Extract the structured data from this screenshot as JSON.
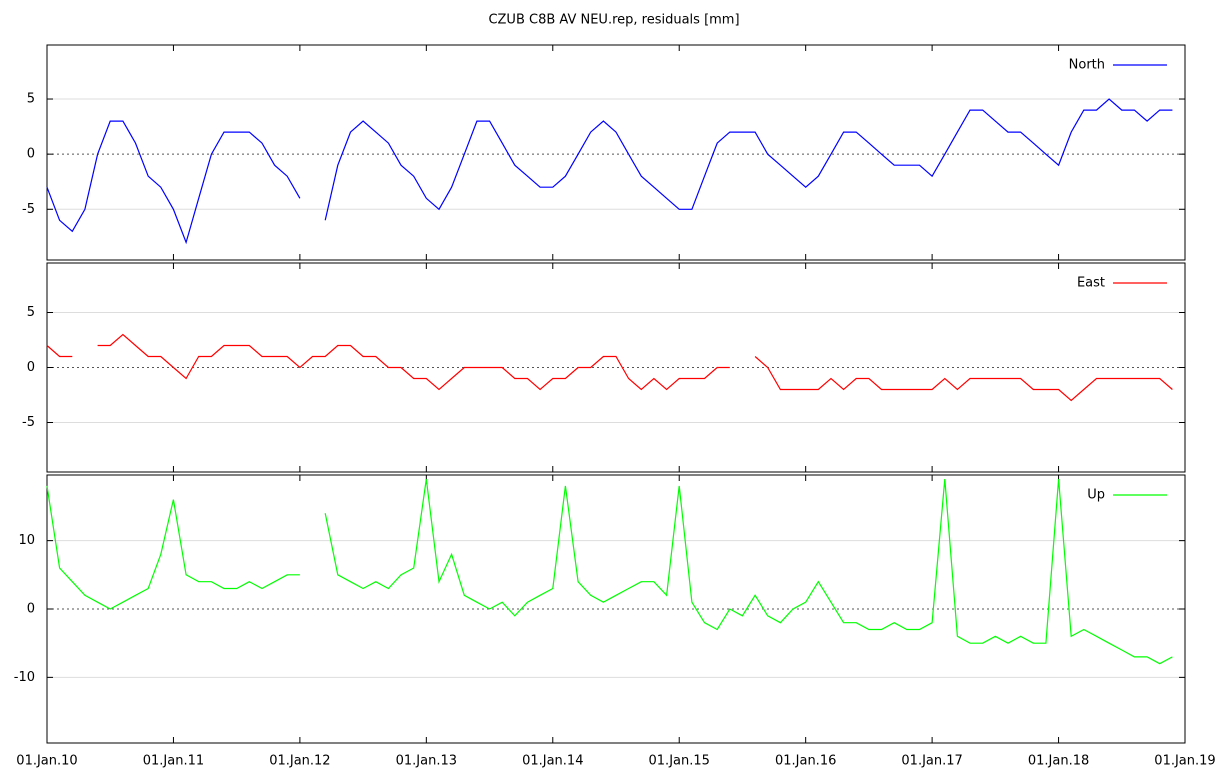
{
  "title": "CZUB C8B AV NEU.rep, residuals [mm]",
  "chart_data": [
    {
      "type": "line",
      "xlim": [
        2010,
        2019
      ],
      "ylim": [
        -9.6,
        9.9
      ],
      "yticks": [
        -5,
        0,
        5
      ],
      "grid": true,
      "legend": "top-right",
      "x": [
        2010.0,
        2010.1,
        2010.2,
        2010.3,
        2010.4,
        2010.5,
        2010.6,
        2010.7,
        2010.8,
        2010.9,
        2011.0,
        2011.1,
        2011.2,
        2011.3,
        2011.4,
        2011.5,
        2011.6,
        2011.7,
        2011.8,
        2011.9,
        2012.0,
        2012.1,
        2012.2,
        2012.3,
        2012.4,
        2012.5,
        2012.6,
        2012.7,
        2012.8,
        2012.9,
        2013.0,
        2013.1,
        2013.2,
        2013.3,
        2013.4,
        2013.5,
        2013.6,
        2013.7,
        2013.8,
        2013.9,
        2014.0,
        2014.1,
        2014.2,
        2014.3,
        2014.4,
        2014.5,
        2014.6,
        2014.7,
        2014.8,
        2014.9,
        2015.0,
        2015.1,
        2015.2,
        2015.3,
        2015.4,
        2015.5,
        2015.6,
        2015.7,
        2015.8,
        2015.9,
        2016.0,
        2016.1,
        2016.2,
        2016.3,
        2016.4,
        2016.5,
        2016.6,
        2016.7,
        2016.8,
        2016.9,
        2017.0,
        2017.1,
        2017.2,
        2017.3,
        2017.4,
        2017.5,
        2017.6,
        2017.7,
        2017.8,
        2017.9,
        2018.0,
        2018.1,
        2018.2,
        2018.3,
        2018.4,
        2018.5,
        2018.6,
        2018.7,
        2018.8,
        2018.9
      ],
      "series": [
        {
          "name": "North",
          "color": "#0000ff",
          "values": [
            -3,
            -6,
            -7,
            -5,
            0,
            3,
            3,
            1,
            -2,
            -3,
            -5,
            -8,
            -4,
            0,
            2,
            2,
            2,
            1,
            -1,
            -2,
            -4,
            null,
            -6,
            -1,
            2,
            3,
            2,
            1,
            -1,
            -2,
            -4,
            -5,
            -3,
            0,
            3,
            3,
            1,
            -1,
            -2,
            -3,
            -3,
            -2,
            0,
            2,
            3,
            2,
            0,
            -2,
            -3,
            -4,
            -5,
            -5,
            -2,
            1,
            2,
            2,
            2,
            0,
            -1,
            -2,
            -3,
            -2,
            0,
            2,
            2,
            1,
            0,
            -1,
            -1,
            -1,
            -2,
            0,
            2,
            4,
            4,
            3,
            2,
            2,
            1,
            0,
            -1,
            2,
            4,
            4,
            5,
            4,
            4,
            3,
            4,
            4
          ]
        }
      ]
    },
    {
      "type": "line",
      "xlim": [
        2010,
        2019
      ],
      "ylim": [
        -9.5,
        9.5
      ],
      "yticks": [
        -5,
        0,
        5
      ],
      "grid": true,
      "legend": "top-right",
      "x": [
        2010.0,
        2010.1,
        2010.2,
        2010.3,
        2010.4,
        2010.5,
        2010.6,
        2010.7,
        2010.8,
        2010.9,
        2011.0,
        2011.1,
        2011.2,
        2011.3,
        2011.4,
        2011.5,
        2011.6,
        2011.7,
        2011.8,
        2011.9,
        2012.0,
        2012.1,
        2012.2,
        2012.3,
        2012.4,
        2012.5,
        2012.6,
        2012.7,
        2012.8,
        2012.9,
        2013.0,
        2013.1,
        2013.2,
        2013.3,
        2013.4,
        2013.5,
        2013.6,
        2013.7,
        2013.8,
        2013.9,
        2014.0,
        2014.1,
        2014.2,
        2014.3,
        2014.4,
        2014.5,
        2014.6,
        2014.7,
        2014.8,
        2014.9,
        2015.0,
        2015.1,
        2015.2,
        2015.3,
        2015.4,
        2015.5,
        2015.6,
        2015.7,
        2015.8,
        2015.9,
        2016.0,
        2016.1,
        2016.2,
        2016.3,
        2016.4,
        2016.5,
        2016.6,
        2016.7,
        2016.8,
        2016.9,
        2017.0,
        2017.1,
        2017.2,
        2017.3,
        2017.4,
        2017.5,
        2017.6,
        2017.7,
        2017.8,
        2017.9,
        2018.0,
        2018.1,
        2018.2,
        2018.3,
        2018.4,
        2018.5,
        2018.6,
        2018.7,
        2018.8,
        2018.9
      ],
      "series": [
        {
          "name": "East",
          "color": "#ff0000",
          "values": [
            2,
            1,
            1,
            null,
            2,
            2,
            3,
            2,
            1,
            1,
            0,
            -1,
            1,
            1,
            2,
            2,
            2,
            1,
            1,
            1,
            0,
            1,
            1,
            2,
            2,
            1,
            1,
            0,
            0,
            -1,
            -1,
            -2,
            -1,
            0,
            0,
            0,
            0,
            -1,
            -1,
            -2,
            -1,
            -1,
            0,
            0,
            1,
            1,
            -1,
            -2,
            -1,
            -2,
            -1,
            -1,
            -1,
            0,
            0,
            null,
            1,
            0,
            -2,
            -2,
            -2,
            -2,
            -1,
            -2,
            -1,
            -1,
            -2,
            -2,
            -2,
            -2,
            -2,
            -1,
            -2,
            -1,
            -1,
            -1,
            -1,
            -1,
            -2,
            -2,
            -2,
            -3,
            -2,
            -1,
            -1,
            -1,
            -1,
            -1,
            -1,
            -2
          ]
        }
      ]
    },
    {
      "type": "line",
      "xlim": [
        2010,
        2019
      ],
      "ylim": [
        -19.6,
        19.6
      ],
      "yticks": [
        -10,
        0,
        10
      ],
      "grid": true,
      "legend": "top-right",
      "xticks": [
        {
          "value": 2010,
          "label": "01.Jan.10"
        },
        {
          "value": 2011,
          "label": "01.Jan.11"
        },
        {
          "value": 2012,
          "label": "01.Jan.12"
        },
        {
          "value": 2013,
          "label": "01.Jan.13"
        },
        {
          "value": 2014,
          "label": "01.Jan.14"
        },
        {
          "value": 2015,
          "label": "01.Jan.15"
        },
        {
          "value": 2016,
          "label": "01.Jan.16"
        },
        {
          "value": 2017,
          "label": "01.Jan.17"
        },
        {
          "value": 2018,
          "label": "01.Jan.18"
        },
        {
          "value": 2019,
          "label": "01.Jan.19"
        }
      ],
      "x": [
        2010.0,
        2010.1,
        2010.2,
        2010.3,
        2010.4,
        2010.5,
        2010.6,
        2010.7,
        2010.8,
        2010.9,
        2011.0,
        2011.1,
        2011.2,
        2011.3,
        2011.4,
        2011.5,
        2011.6,
        2011.7,
        2011.8,
        2011.9,
        2012.0,
        2012.1,
        2012.2,
        2012.3,
        2012.4,
        2012.5,
        2012.6,
        2012.7,
        2012.8,
        2012.9,
        2013.0,
        2013.1,
        2013.2,
        2013.3,
        2013.4,
        2013.5,
        2013.6,
        2013.7,
        2013.8,
        2013.9,
        2014.0,
        2014.1,
        2014.2,
        2014.3,
        2014.4,
        2014.5,
        2014.6,
        2014.7,
        2014.8,
        2014.9,
        2015.0,
        2015.1,
        2015.2,
        2015.3,
        2015.4,
        2015.5,
        2015.6,
        2015.7,
        2015.8,
        2015.9,
        2016.0,
        2016.1,
        2016.2,
        2016.3,
        2016.4,
        2016.5,
        2016.6,
        2016.7,
        2016.8,
        2016.9,
        2017.0,
        2017.1,
        2017.2,
        2017.3,
        2017.4,
        2017.5,
        2017.6,
        2017.7,
        2017.8,
        2017.9,
        2018.0,
        2018.1,
        2018.2,
        2018.3,
        2018.4,
        2018.5,
        2018.6,
        2018.7,
        2018.8,
        2018.9
      ],
      "series": [
        {
          "name": "Up",
          "color": "#00ff00",
          "values": [
            18,
            6,
            4,
            2,
            1,
            0,
            1,
            2,
            3,
            8,
            16,
            5,
            4,
            4,
            3,
            3,
            4,
            3,
            4,
            5,
            5,
            null,
            14,
            5,
            4,
            3,
            4,
            3,
            5,
            6,
            19,
            4,
            8,
            2,
            1,
            0,
            1,
            -1,
            1,
            2,
            3,
            18,
            4,
            2,
            1,
            2,
            3,
            4,
            4,
            2,
            18,
            1,
            -2,
            -3,
            0,
            -1,
            2,
            -1,
            -2,
            0,
            1,
            4,
            1,
            -2,
            -2,
            -3,
            -3,
            -2,
            -3,
            -3,
            -2,
            19,
            -4,
            -5,
            -5,
            -4,
            -5,
            -4,
            -5,
            -5,
            19,
            -4,
            -3,
            -4,
            -5,
            -6,
            -7,
            -7,
            -8,
            -7
          ]
        }
      ]
    }
  ]
}
